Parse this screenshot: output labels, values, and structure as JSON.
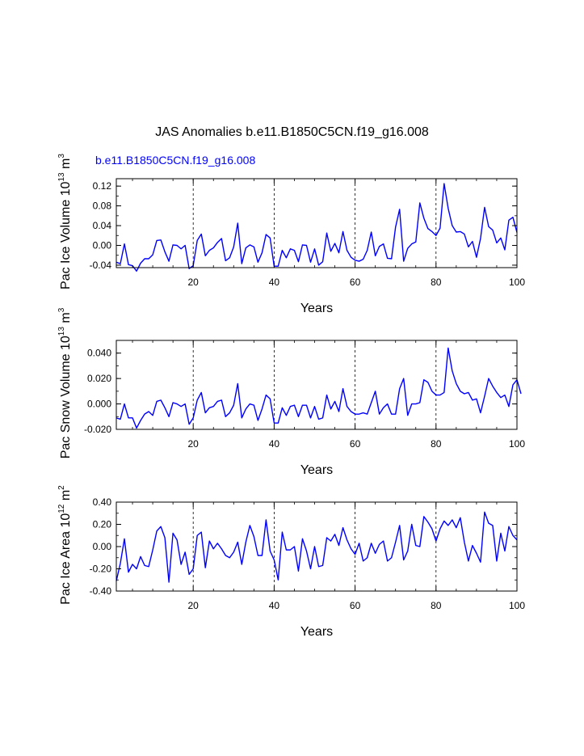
{
  "title": "JAS Anomalies b.e11.B1850C5CN.f19_g16.008",
  "subtitle": "b.e11.B1850C5CN.f19_g16.008",
  "colors": {
    "line": "#0000ff",
    "axis": "#000000",
    "grid": "#000000",
    "subtitle": "#0000ff"
  },
  "chart_data": [
    {
      "type": "line",
      "ylabel": "Pac Ice Volume 10^13 m^3",
      "ylabel_base": "Pac Ice Volume 10",
      "ylabel_exp": "13",
      "ylabel_unit": " m",
      "ylabel_unit_exp": "3",
      "xlabel": "Years",
      "xlim": [
        1,
        100
      ],
      "ylim": [
        -0.045,
        0.135
      ],
      "yticks": [
        -0.04,
        0.0,
        0.04,
        0.08,
        0.12
      ],
      "yticklabels": [
        "-0.04",
        "0.00",
        "0.04",
        "0.08",
        "0.12"
      ],
      "xticks": [
        20,
        40,
        60,
        80,
        100
      ],
      "xticklabels": [
        "20",
        "40",
        "60",
        "80",
        "100"
      ],
      "vlines": [
        20,
        40,
        60,
        80
      ],
      "series": [
        {
          "name": "b.e11.B1850C5CN.f19_g16.008",
          "values": [
            -0.034,
            -0.037,
            0.003,
            -0.039,
            -0.041,
            -0.052,
            -0.036,
            -0.027,
            -0.027,
            -0.019,
            0.01,
            0.011,
            -0.013,
            -0.032,
            0.001,
            0.0,
            -0.007,
            0.0,
            -0.047,
            -0.041,
            0.01,
            0.023,
            -0.021,
            -0.01,
            -0.005,
            0.006,
            0.014,
            -0.031,
            -0.025,
            -0.003,
            0.045,
            -0.037,
            -0.005,
            0.001,
            -0.003,
            -0.034,
            -0.015,
            0.022,
            0.015,
            -0.042,
            -0.042,
            -0.01,
            -0.025,
            -0.007,
            -0.01,
            -0.033,
            0.001,
            0.0,
            -0.034,
            -0.007,
            -0.04,
            -0.033,
            0.025,
            -0.012,
            0.004,
            -0.015,
            0.028,
            -0.01,
            -0.024,
            -0.03,
            -0.032,
            -0.028,
            -0.01,
            0.027,
            -0.021,
            -0.002,
            0.003,
            -0.026,
            -0.027,
            0.037,
            0.073,
            -0.032,
            -0.006,
            0.003,
            0.007,
            0.086,
            0.055,
            0.034,
            0.028,
            0.02,
            0.035,
            0.125,
            0.075,
            0.04,
            0.027,
            0.028,
            0.023,
            -0.003,
            0.008,
            -0.024,
            0.014,
            0.077,
            0.038,
            0.031,
            0.005,
            0.015,
            -0.009,
            0.051,
            0.057,
            0.026
          ]
        }
      ]
    },
    {
      "type": "line",
      "ylabel": "Pac Snow Volume 10^13 m^3",
      "ylabel_base": "Pac Snow Volume 10",
      "ylabel_exp": "13",
      "ylabel_unit": " m",
      "ylabel_unit_exp": "3",
      "xlabel": "Years",
      "xlim": [
        1,
        100
      ],
      "ylim": [
        -0.02,
        0.05
      ],
      "yticks": [
        -0.02,
        0.0,
        0.02,
        0.04
      ],
      "yticklabels": [
        "-0.020",
        "0.000",
        "0.020",
        "0.040"
      ],
      "xticks": [
        20,
        40,
        60,
        80,
        100
      ],
      "xticklabels": [
        "20",
        "40",
        "60",
        "80",
        "100"
      ],
      "vlines": [
        20,
        40,
        60,
        80
      ],
      "series": [
        {
          "name": "b.e11.B1850C5CN.f19_g16.008",
          "values": [
            -0.011,
            -0.012,
            0.0,
            -0.011,
            -0.011,
            -0.019,
            -0.013,
            -0.008,
            -0.006,
            -0.009,
            0.002,
            0.003,
            -0.003,
            -0.01,
            0.001,
            0.0,
            -0.002,
            0.0,
            -0.016,
            -0.011,
            0.003,
            0.009,
            -0.007,
            -0.003,
            -0.002,
            0.002,
            0.003,
            -0.01,
            -0.007,
            -0.001,
            0.016,
            -0.011,
            -0.004,
            0.0,
            -0.001,
            -0.013,
            -0.004,
            0.007,
            0.004,
            -0.015,
            -0.015,
            -0.003,
            -0.009,
            -0.002,
            -0.001,
            -0.01,
            -0.001,
            -0.001,
            -0.011,
            -0.002,
            -0.012,
            -0.011,
            0.007,
            -0.004,
            0.002,
            -0.006,
            0.012,
            -0.002,
            -0.006,
            -0.008,
            -0.008,
            -0.007,
            -0.008,
            0.001,
            0.01,
            -0.008,
            -0.003,
            0.0,
            -0.008,
            -0.008,
            0.012,
            0.02,
            -0.009,
            0.0,
            0.0,
            0.001,
            0.019,
            0.017,
            0.01,
            0.007,
            0.007,
            0.009,
            0.044,
            0.026,
            0.016,
            0.01,
            0.008,
            0.009,
            0.003,
            0.004,
            -0.007,
            0.006,
            0.02,
            0.014,
            0.009,
            0.005,
            0.007,
            -0.002,
            0.015,
            0.019,
            0.008
          ]
        }
      ]
    },
    {
      "type": "line",
      "ylabel": "Pac Ice Area 10^12 m^2",
      "ylabel_base": "Pac Ice Area 10",
      "ylabel_exp": "12",
      "ylabel_unit": " m",
      "ylabel_unit_exp": "2",
      "xlabel": "Years",
      "xlim": [
        1,
        100
      ],
      "ylim": [
        -0.4,
        0.4
      ],
      "yticks": [
        -0.4,
        -0.2,
        0.0,
        0.2,
        0.4
      ],
      "yticklabels": [
        "-0.40",
        "-0.20",
        "0.00",
        "0.20",
        "0.40"
      ],
      "xticks": [
        20,
        40,
        60,
        80,
        100
      ],
      "xticklabels": [
        "20",
        "40",
        "60",
        "80",
        "100"
      ],
      "vlines": [
        20,
        40,
        60,
        80
      ],
      "series": [
        {
          "name": "b.e11.B1850C5CN.f19_g16.008",
          "values": [
            -0.31,
            -0.15,
            0.07,
            -0.23,
            -0.16,
            -0.2,
            -0.09,
            -0.17,
            -0.18,
            -0.03,
            0.14,
            0.18,
            0.08,
            -0.32,
            0.12,
            0.06,
            -0.16,
            -0.05,
            -0.25,
            -0.2,
            0.1,
            0.13,
            -0.19,
            0.05,
            -0.02,
            0.03,
            -0.02,
            -0.08,
            -0.1,
            -0.05,
            0.04,
            -0.16,
            0.04,
            0.19,
            0.09,
            -0.08,
            -0.08,
            0.24,
            -0.04,
            -0.12,
            -0.3,
            0.13,
            -0.03,
            -0.03,
            0.0,
            -0.22,
            0.07,
            -0.04,
            -0.2,
            0.0,
            -0.18,
            -0.17,
            0.08,
            0.05,
            0.11,
            0.01,
            0.17,
            0.06,
            -0.02,
            -0.07,
            0.03,
            -0.13,
            -0.1,
            0.03,
            -0.06,
            0.02,
            0.05,
            -0.13,
            -0.1,
            0.04,
            0.19,
            -0.12,
            -0.04,
            0.2,
            0.01,
            0.0,
            0.27,
            0.22,
            0.16,
            0.05,
            0.16,
            0.23,
            0.19,
            0.24,
            0.17,
            0.26,
            0.04,
            -0.13,
            0.01,
            -0.06,
            -0.14,
            0.31,
            0.21,
            0.19,
            -0.13,
            0.12,
            -0.04,
            0.18,
            0.1,
            0.06
          ]
        }
      ]
    }
  ]
}
